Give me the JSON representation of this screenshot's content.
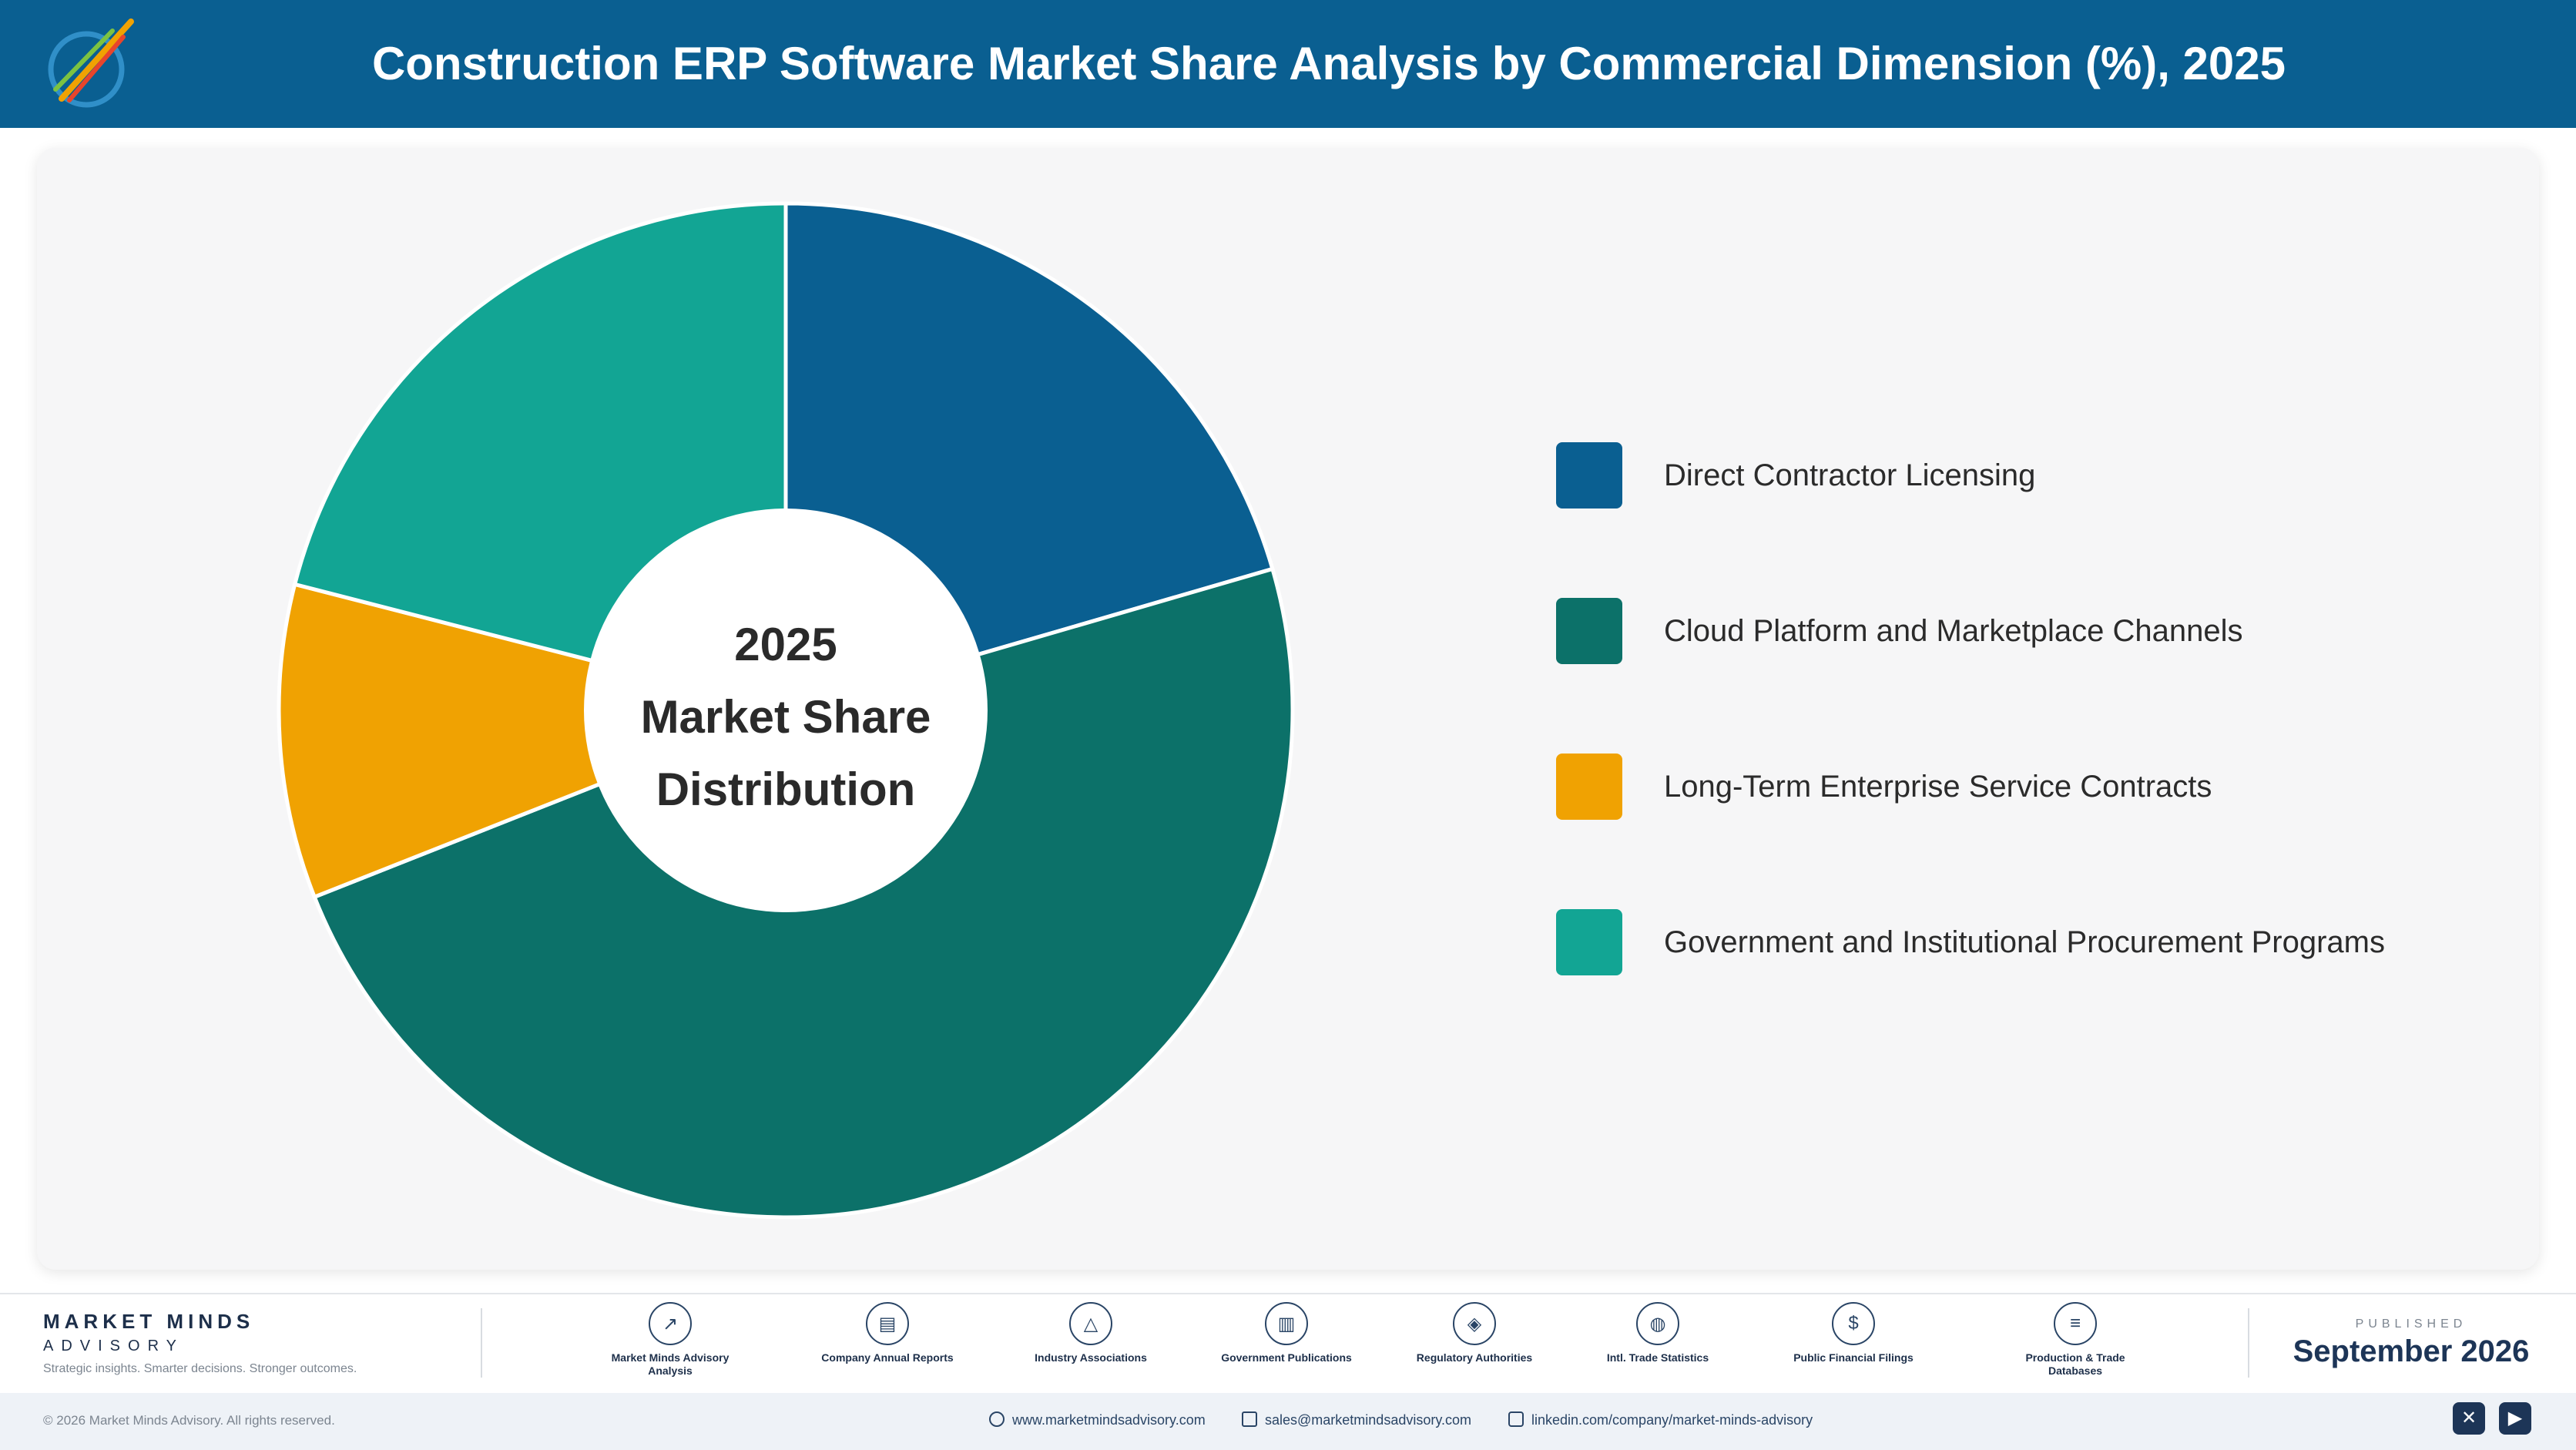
{
  "header": {
    "title": "Construction ERP Software Market Share Analysis by Commercial Dimension (%), 2025"
  },
  "chart_data": {
    "type": "pie",
    "donut": true,
    "center_label": [
      "2025",
      "Market Share",
      "Distribution"
    ],
    "legend_position": "right",
    "slices": [
      {
        "label": "Direct Contractor Licensing",
        "value": 20.5,
        "color": "#0a5f91"
      },
      {
        "label": "Cloud Platform and Marketplace Channels",
        "value": 48.5,
        "color": "#0c7169"
      },
      {
        "label": "Long-Term Enterprise Service Contracts",
        "value": 10.0,
        "color": "#f0a202"
      },
      {
        "label": "Government and Institutional Procurement Programs",
        "value": 21.0,
        "color": "#12a594"
      }
    ]
  },
  "footer": {
    "brand_name": "MARKET MINDS",
    "brand_sub": "ADVISORY",
    "tagline": "Strategic insights. Smarter decisions. Stronger outcomes.",
    "sources": [
      {
        "label": "Market Minds Advisory Analysis",
        "icon": "trend-icon"
      },
      {
        "label": "Company Annual Reports",
        "icon": "document-icon"
      },
      {
        "label": "Industry Associations",
        "icon": "network-icon"
      },
      {
        "label": "Government Publications",
        "icon": "building-icon"
      },
      {
        "label": "Regulatory Authorities",
        "icon": "shield-icon"
      },
      {
        "label": "Intl. Trade Statistics",
        "icon": "globe-icon"
      },
      {
        "label": "Public Financial Filings",
        "icon": "dollar-icon"
      },
      {
        "label": "Production & Trade Databases",
        "icon": "database-icon"
      }
    ],
    "published_label": "PUBLISHED",
    "published_date": "September 2026",
    "copyright": "© 2026 Market Minds Advisory. All rights reserved.",
    "website": "www.marketmindsadvisory.com",
    "email": "sales@marketmindsadvisory.com",
    "linkedin": "linkedin.com/company/market-minds-advisory"
  }
}
